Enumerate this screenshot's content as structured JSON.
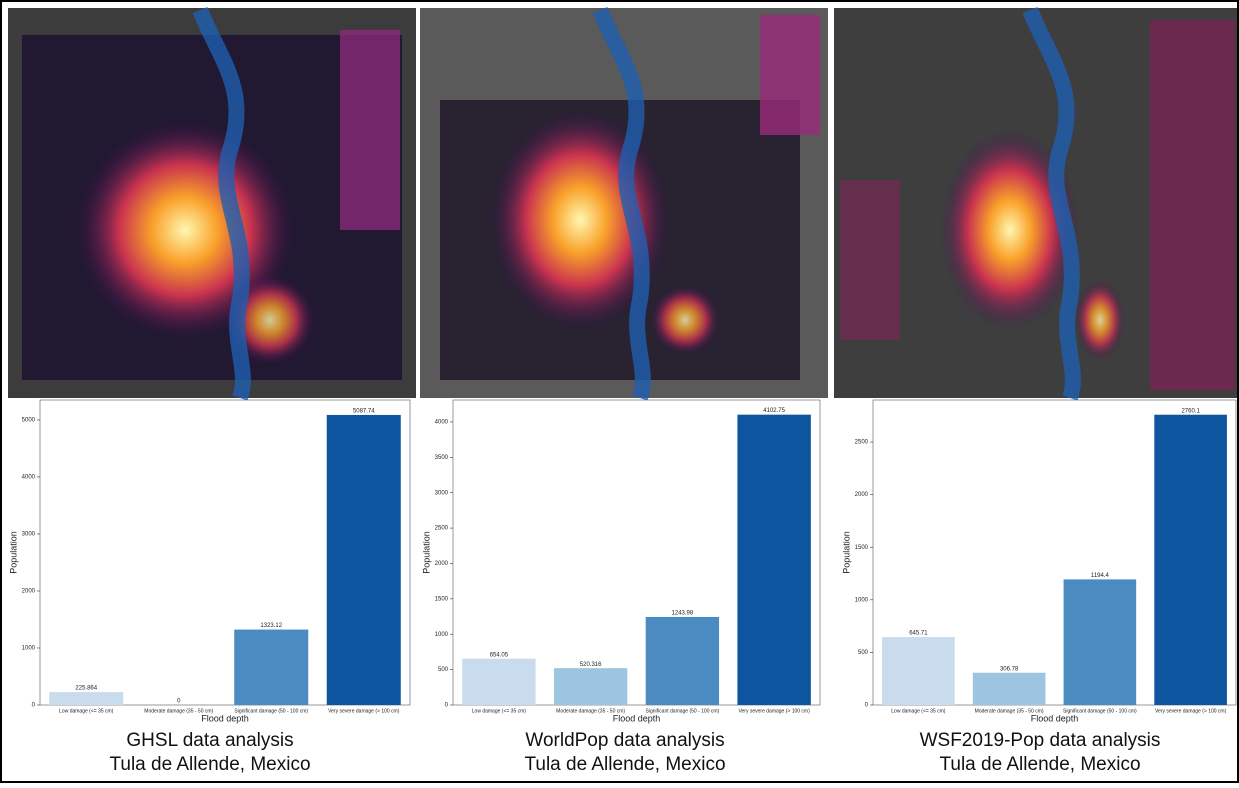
{
  "chart_data": [
    {
      "type": "bar",
      "title": "GHSL data analysis",
      "subtitle": "Tula de Allende, Mexico",
      "x_label": "Flood depth",
      "y_label": "Population",
      "categories": [
        "Low damage (<= 35 cm)",
        "Moderate damage (35 - 50 cm)",
        "Significant damage (50 - 100 cm)",
        "Very severe damage (> 100 cm)"
      ],
      "values": [
        225.864,
        0,
        1323.12,
        5087.74
      ],
      "colors": [
        "#c8dcee",
        "#9dc4e0",
        "#4b8bc2",
        "#0d559f"
      ],
      "ylim": [
        0,
        5350
      ],
      "yticks": [
        0,
        1000,
        2000,
        3000,
        4000,
        5000
      ]
    },
    {
      "type": "bar",
      "title": "WorldPop data analysis",
      "subtitle": "Tula de Allende, Mexico",
      "x_label": "Flood depth",
      "y_label": "Population",
      "categories": [
        "Low damage (<= 35 cm)",
        "Moderate damage (35 - 50 cm)",
        "Significant damage (50 - 100 cm)",
        "Very severe damage (> 100 cm)"
      ],
      "values": [
        654.05,
        520.316,
        1243.98,
        4102.75
      ],
      "colors": [
        "#c8dcee",
        "#9dc4e0",
        "#4b8bc2",
        "#0d559f"
      ],
      "ylim": [
        0,
        4310
      ],
      "yticks": [
        0,
        500,
        1000,
        1500,
        2000,
        2500,
        3000,
        3500,
        4000
      ]
    },
    {
      "type": "bar",
      "title": "WSF2019-Pop data analysis",
      "subtitle": "Tula de Allende, Mexico",
      "x_label": "Flood depth",
      "y_label": "Population",
      "categories": [
        "Low damage (<= 35 cm)",
        "Moderate damage (35 - 50 cm)",
        "Significant damage (50 - 100 cm)",
        "Very severe damage (> 100 cm)"
      ],
      "values": [
        645.71,
        306.78,
        1194.4,
        2760.1
      ],
      "colors": [
        "#c8dcee",
        "#9dc4e0",
        "#4b8bc2",
        "#0d559f"
      ],
      "ylim": [
        0,
        2900
      ],
      "yticks": [
        0,
        500,
        1000,
        1500,
        2000,
        2500
      ]
    }
  ]
}
